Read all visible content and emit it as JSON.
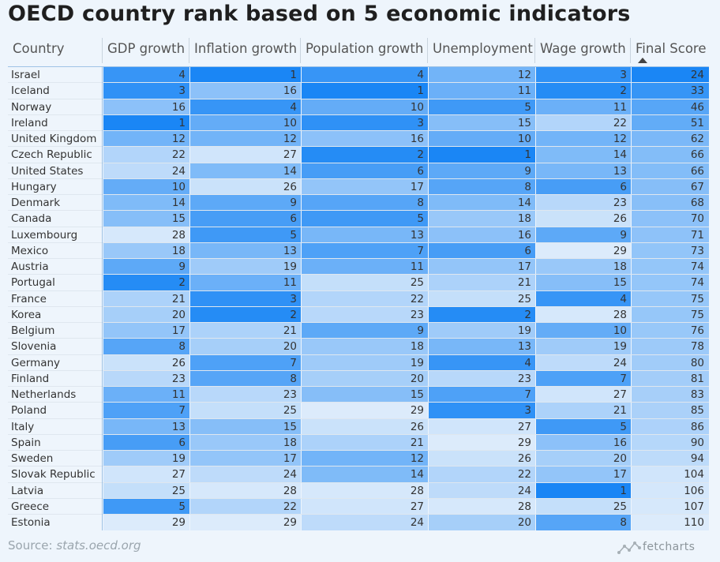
{
  "title": "OECD country rank based on 5 economic indicators",
  "source_label": "Source: ",
  "source_site": "stats.oecd.org",
  "brand": "fetcharts",
  "icons": {
    "sort": "sort-ascending-icon",
    "logo": "fetcharts-logo-icon"
  },
  "colors": {
    "best": "#1a86f5",
    "worst": "#dcebfb",
    "background": "#eef5fc"
  },
  "chart_data": {
    "type": "table",
    "title": "OECD country rank based on 5 economic indicators",
    "columns": [
      "Country",
      "GDP growth",
      "Inflation growth",
      "Population growth",
      "Unemployment",
      "Wage growth",
      "Final Score"
    ],
    "sorted_by": "Final Score",
    "sort_direction": "ascending",
    "rows": [
      [
        "Israel",
        4,
        1,
        4,
        12,
        3,
        24
      ],
      [
        "Iceland",
        3,
        16,
        1,
        11,
        2,
        33
      ],
      [
        "Norway",
        16,
        4,
        10,
        5,
        11,
        46
      ],
      [
        "Ireland",
        1,
        10,
        3,
        15,
        22,
        51
      ],
      [
        "United Kingdom",
        12,
        12,
        16,
        10,
        12,
        62
      ],
      [
        "Czech Republic",
        22,
        27,
        2,
        1,
        14,
        66
      ],
      [
        "United States",
        24,
        14,
        6,
        9,
        13,
        66
      ],
      [
        "Hungary",
        10,
        26,
        17,
        8,
        6,
        67
      ],
      [
        "Denmark",
        14,
        9,
        8,
        14,
        23,
        68
      ],
      [
        "Canada",
        15,
        6,
        5,
        18,
        26,
        70
      ],
      [
        "Luxembourg",
        28,
        5,
        13,
        16,
        9,
        71
      ],
      [
        "Mexico",
        18,
        13,
        7,
        6,
        29,
        73
      ],
      [
        "Austria",
        9,
        19,
        11,
        17,
        18,
        74
      ],
      [
        "Portugal",
        2,
        11,
        25,
        21,
        15,
        74
      ],
      [
        "France",
        21,
        3,
        22,
        25,
        4,
        75
      ],
      [
        "Korea",
        20,
        2,
        23,
        2,
        28,
        75
      ],
      [
        "Belgium",
        17,
        21,
        9,
        19,
        10,
        76
      ],
      [
        "Slovenia",
        8,
        20,
        18,
        13,
        19,
        78
      ],
      [
        "Germany",
        26,
        7,
        19,
        4,
        24,
        80
      ],
      [
        "Finland",
        23,
        8,
        20,
        23,
        7,
        81
      ],
      [
        "Netherlands",
        11,
        23,
        15,
        7,
        27,
        83
      ],
      [
        "Poland",
        7,
        25,
        29,
        3,
        21,
        85
      ],
      [
        "Italy",
        13,
        15,
        26,
        27,
        5,
        86
      ],
      [
        "Spain",
        6,
        18,
        21,
        29,
        16,
        90
      ],
      [
        "Sweden",
        19,
        17,
        12,
        26,
        20,
        94
      ],
      [
        "Slovak Republic",
        27,
        24,
        14,
        22,
        17,
        104
      ],
      [
        "Latvia",
        25,
        28,
        28,
        24,
        1,
        106
      ],
      [
        "Greece",
        5,
        22,
        27,
        28,
        25,
        107
      ],
      [
        "Estonia",
        29,
        29,
        24,
        20,
        8,
        110
      ]
    ]
  }
}
